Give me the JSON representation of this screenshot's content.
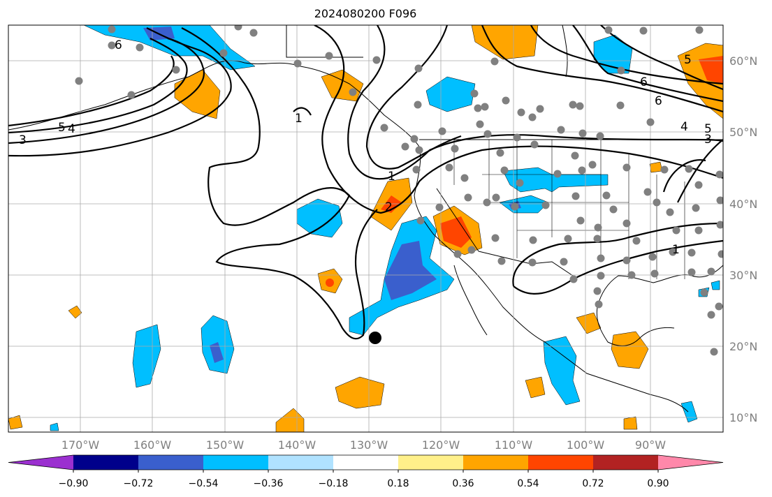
{
  "title": "2024080200 F096",
  "lon_ticks": [
    "170°W",
    "160°W",
    "150°W",
    "140°W",
    "130°W",
    "120°W",
    "110°W",
    "100°W",
    "90°W"
  ],
  "lat_ticks": [
    "60°N",
    "50°N",
    "40°N",
    "30°N",
    "20°N",
    "10°N"
  ],
  "colorbar": {
    "colors": [
      "#9b30d0",
      "#00008b",
      "#3a5fcd",
      "#00bfff",
      "#b0e2ff",
      "#ffffff",
      "#fff08a",
      "#ffa500",
      "#ff4500",
      "#b22222",
      "#ff88aa"
    ],
    "tick_labels": [
      "−0.90",
      "−0.72",
      "−0.54",
      "−0.36",
      "−0.18",
      "0.18",
      "0.36",
      "0.54",
      "0.72",
      "0.90"
    ]
  },
  "contour_labels": [
    "6",
    "5",
    "4",
    "3",
    "1",
    "1",
    "2",
    "6",
    "6",
    "4",
    "5",
    "3",
    "1",
    "5"
  ],
  "colors": {
    "land_line": "#000000",
    "grid": "#aaaaaa",
    "station": "#808080",
    "marker": "#000000"
  }
}
